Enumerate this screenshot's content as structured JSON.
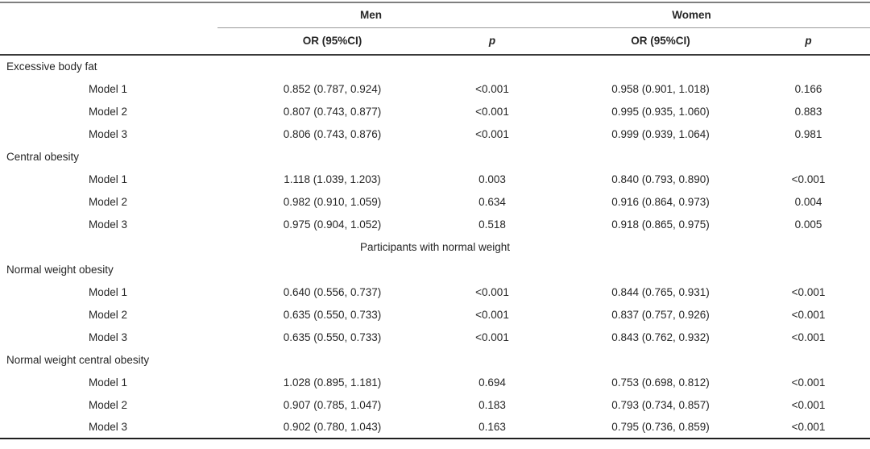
{
  "table": {
    "groups": [
      "Men",
      "Women"
    ],
    "sub_headers": [
      "OR (95%CI)",
      "p",
      "OR (95%CI)",
      "p"
    ],
    "sections": [
      {
        "title": "Excessive body fat",
        "rows": [
          {
            "label": "Model 1",
            "men_or": "0.852 (0.787, 0.924)",
            "men_p": "<0.001",
            "women_or": "0.958 (0.901, 1.018)",
            "women_p": "0.166"
          },
          {
            "label": "Model 2",
            "men_or": "0.807 (0.743, 0.877)",
            "men_p": "<0.001",
            "women_or": "0.995 (0.935, 1.060)",
            "women_p": "0.883"
          },
          {
            "label": "Model 3",
            "men_or": "0.806 (0.743, 0.876)",
            "men_p": "<0.001",
            "women_or": "0.999 (0.939, 1.064)",
            "women_p": "0.981"
          }
        ]
      },
      {
        "title": "Central obesity",
        "rows": [
          {
            "label": "Model 1",
            "men_or": "1.118 (1.039, 1.203)",
            "men_p": "0.003",
            "women_or": "0.840 (0.793, 0.890)",
            "women_p": "<0.001"
          },
          {
            "label": "Model 2",
            "men_or": "0.982 (0.910, 1.059)",
            "men_p": "0.634",
            "women_or": "0.916 (0.864, 0.973)",
            "women_p": "0.004"
          },
          {
            "label": "Model 3",
            "men_or": "0.975 (0.904, 1.052)",
            "men_p": "0.518",
            "women_or": "0.918 (0.865, 0.975)",
            "women_p": "0.005"
          }
        ]
      },
      {
        "divider": "Participants with normal weight"
      },
      {
        "title": "Normal weight obesity",
        "rows": [
          {
            "label": "Model 1",
            "men_or": "0.640 (0.556, 0.737)",
            "men_p": "<0.001",
            "women_or": "0.844 (0.765, 0.931)",
            "women_p": "<0.001"
          },
          {
            "label": "Model 2",
            "men_or": "0.635 (0.550, 0.733)",
            "men_p": "<0.001",
            "women_or": "0.837 (0.757, 0.926)",
            "women_p": "<0.001"
          },
          {
            "label": "Model 3",
            "men_or": "0.635 (0.550, 0.733)",
            "men_p": "<0.001",
            "women_or": "0.843 (0.762, 0.932)",
            "women_p": "<0.001"
          }
        ]
      },
      {
        "title": "Normal weight central obesity",
        "rows": [
          {
            "label": "Model 1",
            "men_or": "1.028 (0.895, 1.181)",
            "men_p": "0.694",
            "women_or": "0.753 (0.698, 0.812)",
            "women_p": "<0.001"
          },
          {
            "label": "Model 2",
            "men_or": "0.907 (0.785, 1.047)",
            "men_p": "0.183",
            "women_or": "0.793 (0.734, 0.857)",
            "women_p": "<0.001"
          },
          {
            "label": "Model 3",
            "men_or": "0.902 (0.780, 1.043)",
            "men_p": "0.163",
            "women_or": "0.795 (0.736, 0.859)",
            "women_p": "<0.001"
          }
        ]
      }
    ]
  }
}
